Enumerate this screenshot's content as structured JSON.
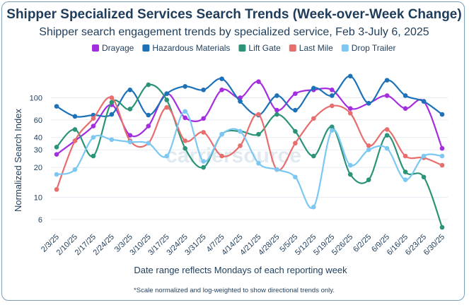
{
  "colors": {
    "title": "#1f3d5a",
    "grid": "#e6ecf1",
    "watermark": "#c9d8e6"
  },
  "watermark": "carriersource",
  "footnote": "*Scale normalized and log-weighted to show directional trends only.",
  "chart_data": {
    "type": "line",
    "title": "Shipper Specialized Services Search Trends (Week-over-Week Change)",
    "subtitle": "Shipper search engagement trends by specialized service, Feb 3-July 6, 2025",
    "xlabel": "Date range reflects Mondays of each reporting week",
    "ylabel": "Normalized Search Index",
    "yscale": "log",
    "ylim": [
      5,
      200
    ],
    "yticks": [
      6,
      10,
      20,
      30,
      40,
      60,
      100
    ],
    "grid": true,
    "legend_position": "top",
    "categories": [
      "2/3/25",
      "2/10/25",
      "2/17/25",
      "2/24/25",
      "3/3/25",
      "3/10/25",
      "3/17/25",
      "3/24/25",
      "3/31/25",
      "4/7/25",
      "4/14/25",
      "4/21/25",
      "4/28/25",
      "5/5/25",
      "5/12/25",
      "5/19/25",
      "5/26/25",
      "6/2/25",
      "6/9/25",
      "6/16/25",
      "6/23/25",
      "6/30/25"
    ],
    "series": [
      {
        "name": "Drayage",
        "color": "#a52de0",
        "values": [
          27,
          37,
          52,
          85,
          42,
          52,
          110,
          63,
          62,
          120,
          100,
          145,
          75,
          110,
          120,
          120,
          78,
          88,
          105,
          78,
          92,
          31
        ]
      },
      {
        "name": "Hazardous Materials",
        "color": "#1d71b8",
        "values": [
          82,
          65,
          67,
          68,
          120,
          67,
          110,
          130,
          120,
          155,
          92,
          67,
          105,
          75,
          125,
          105,
          165,
          88,
          150,
          105,
          92,
          68
        ]
      },
      {
        "name": "Lift Gate",
        "color": "#2b9378",
        "values": [
          32,
          48,
          26,
          90,
          77,
          135,
          95,
          31,
          20,
          43,
          46,
          43,
          68,
          46,
          26,
          51,
          17,
          15,
          42,
          18,
          16,
          5
        ]
      },
      {
        "name": "Last Mile",
        "color": "#e86e6e",
        "values": [
          12,
          37,
          62,
          100,
          37,
          35,
          80,
          37,
          45,
          26,
          33,
          68,
          19,
          35,
          62,
          83,
          70,
          33,
          48,
          26,
          25,
          21
        ]
      },
      {
        "name": "Drop Trailer",
        "color": "#7cc8f2",
        "values": [
          17,
          19,
          40,
          38,
          36,
          35,
          26,
          73,
          23,
          43,
          46,
          22,
          19,
          16,
          8,
          47,
          21,
          30,
          31,
          15,
          26,
          26
        ]
      }
    ]
  }
}
